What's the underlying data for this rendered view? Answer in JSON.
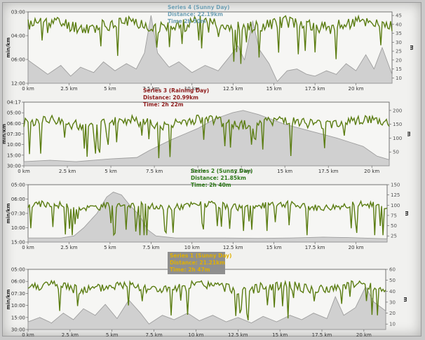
{
  "chart_data": [
    {
      "type": "line",
      "panel": "series-4",
      "annotation": [
        "Series 4 (Sunny Day)",
        "Distance: 22.19km",
        "Time 2h 50m"
      ],
      "annotation_color": "#6fa0b5",
      "annotation_bg": "",
      "ylabel": "min/km",
      "y2label": "m",
      "xticks": [
        "0 km",
        "2.5 km",
        "5 km",
        "7.5 km",
        "10 km",
        "12.5 km",
        "15 km",
        "17.5 km",
        "20 km"
      ],
      "xlim": [
        0,
        22.2
      ],
      "yticks": [
        "03:00",
        "04:00",
        "06:00",
        "12:00"
      ],
      "y2ticks": [
        10,
        15,
        20,
        25,
        30,
        35,
        40,
        45
      ],
      "y2lim": [
        7,
        47
      ],
      "pace_color": "#5b7d12",
      "elevation_color": "#9a9a9a",
      "pace_mean": 0.82,
      "pace_amp": 0.09,
      "pace_spikes": 0.22,
      "pace_seed": 4,
      "elevation": [
        [
          0,
          20
        ],
        [
          0.6,
          16
        ],
        [
          1.2,
          12
        ],
        [
          2,
          17
        ],
        [
          2.6,
          11
        ],
        [
          3.2,
          16
        ],
        [
          4,
          13
        ],
        [
          4.6,
          19
        ],
        [
          5.3,
          14
        ],
        [
          6,
          18
        ],
        [
          6.6,
          15
        ],
        [
          7.1,
          24
        ],
        [
          7.5,
          45
        ],
        [
          7.9,
          24
        ],
        [
          8.6,
          16
        ],
        [
          9.2,
          19
        ],
        [
          10,
          13
        ],
        [
          10.8,
          17
        ],
        [
          11.6,
          14
        ],
        [
          12.3,
          22
        ],
        [
          12.8,
          28
        ],
        [
          13.2,
          20
        ],
        [
          13.7,
          42
        ],
        [
          14.1,
          26
        ],
        [
          14.7,
          18
        ],
        [
          15.2,
          8
        ],
        [
          15.8,
          14
        ],
        [
          16.4,
          15
        ],
        [
          17,
          12
        ],
        [
          17.5,
          11
        ],
        [
          18.2,
          14
        ],
        [
          18.8,
          12
        ],
        [
          19.4,
          18
        ],
        [
          20,
          14
        ],
        [
          20.6,
          23
        ],
        [
          21.1,
          15
        ],
        [
          21.6,
          27
        ],
        [
          22.2,
          12
        ]
      ]
    },
    {
      "type": "line",
      "panel": "series-3",
      "annotation": [
        "Series 3 (Raining Day)",
        "Distance: 20.99km",
        "Time: 2h 22m"
      ],
      "annotation_color": "#8e1b1b",
      "annotation_bg": "",
      "ylabel": "min/km",
      "y2label": "m",
      "xticks": [
        "0 km",
        "2.5 km",
        "5 km",
        "7.5 km",
        "10 km",
        "12.5 km",
        "15 km",
        "17.5 km",
        "20 km"
      ],
      "xlim": [
        0,
        21
      ],
      "yticks": [
        "04:17",
        "05:00",
        "06:00",
        "07:30",
        "10:00",
        "15:00",
        "30:00"
      ],
      "y2ticks": [
        50,
        100,
        150,
        200
      ],
      "y2lim": [
        0,
        230
      ],
      "pace_color": "#5b7d12",
      "elevation_color": "#9a9a9a",
      "pace_mean": 0.68,
      "pace_amp": 0.08,
      "pace_spikes": 0.35,
      "pace_seed": 3,
      "elevation": [
        [
          0,
          15
        ],
        [
          1.5,
          20
        ],
        [
          3,
          15
        ],
        [
          5,
          25
        ],
        [
          6.5,
          30
        ],
        [
          7.2,
          55
        ],
        [
          8.5,
          95
        ],
        [
          10,
          135
        ],
        [
          11,
          170
        ],
        [
          12,
          192
        ],
        [
          12.6,
          200
        ],
        [
          13.5,
          185
        ],
        [
          15,
          150
        ],
        [
          16.5,
          125
        ],
        [
          18,
          100
        ],
        [
          19.5,
          70
        ],
        [
          20.3,
          35
        ],
        [
          21,
          22
        ]
      ]
    },
    {
      "type": "line",
      "panel": "series-2",
      "annotation": [
        "Series 2 (Sunny Day)",
        "Distance: 21.85km",
        "Time: 2h 40m"
      ],
      "annotation_color": "#2f7a1a",
      "annotation_bg": "",
      "ylabel": "min/km",
      "y2label": "m",
      "xticks": [
        "0 km",
        "2.5 km",
        "5 km",
        "7.5 km",
        "10 km",
        "12.5 km",
        "15 km",
        "17.5 km",
        "20 km"
      ],
      "xlim": [
        0,
        21.9
      ],
      "yticks": [
        "05:00",
        "06:00",
        "07:30",
        "10:00",
        "15:00"
      ],
      "y2ticks": [
        25,
        50,
        75,
        100,
        125,
        150
      ],
      "y2lim": [
        10,
        150
      ],
      "pace_color": "#5b7d12",
      "elevation_color": "#9a9a9a",
      "pace_mean": 0.63,
      "pace_amp": 0.06,
      "pace_spikes": 0.4,
      "pace_seed": 2,
      "elevation": [
        [
          0,
          20
        ],
        [
          2,
          20
        ],
        [
          2.8,
          25
        ],
        [
          3.4,
          45
        ],
        [
          4.2,
          80
        ],
        [
          4.8,
          120
        ],
        [
          5.2,
          132
        ],
        [
          5.7,
          125
        ],
        [
          6.2,
          100
        ],
        [
          6.8,
          75
        ],
        [
          7.3,
          40
        ],
        [
          7.8,
          25
        ],
        [
          9,
          20
        ],
        [
          12,
          20
        ],
        [
          14,
          19
        ],
        [
          16,
          20
        ],
        [
          18,
          22
        ],
        [
          19.5,
          21
        ],
        [
          21.9,
          18
        ]
      ]
    },
    {
      "type": "line",
      "panel": "series-1",
      "annotation": [
        "Series 1 (Sunny Day)",
        "Distance: 21.21km",
        "Time: 2h 47m"
      ],
      "annotation_color": "#e0b000",
      "annotation_bg": "#8f8f8f",
      "ylabel": "min/km",
      "y2label": "m",
      "xticks": [
        "0 km",
        "2.5 km",
        "5 km",
        "7.5 km",
        "10 km",
        "12.5 km",
        "15 km",
        "17.5 km",
        "20 km"
      ],
      "xlim": [
        0,
        21.3
      ],
      "yticks": [
        "05:00",
        "06:00",
        "07:30",
        "10:00",
        "15:00",
        "30:00"
      ],
      "y2ticks": [
        10,
        20,
        30,
        40,
        50,
        60
      ],
      "y2lim": [
        5,
        60
      ],
      "pace_color": "#5b7d12",
      "elevation_color": "#9a9a9a",
      "pace_mean": 0.7,
      "pace_amp": 0.08,
      "pace_spikes": 0.32,
      "pace_seed": 1,
      "elevation": [
        [
          0,
          12
        ],
        [
          0.7,
          16
        ],
        [
          1.4,
          11
        ],
        [
          2.1,
          20
        ],
        [
          2.7,
          14
        ],
        [
          3.3,
          24
        ],
        [
          4,
          18
        ],
        [
          4.6,
          28
        ],
        [
          5.3,
          15
        ],
        [
          6,
          32
        ],
        [
          6.7,
          20
        ],
        [
          7.2,
          10
        ],
        [
          8,
          18
        ],
        [
          8.7,
          14
        ],
        [
          9.5,
          20
        ],
        [
          10.2,
          13
        ],
        [
          11,
          18
        ],
        [
          11.8,
          12
        ],
        [
          12.5,
          16
        ],
        [
          13.3,
          11
        ],
        [
          14,
          17
        ],
        [
          14.8,
          12
        ],
        [
          15.6,
          18
        ],
        [
          16.3,
          14
        ],
        [
          17,
          20
        ],
        [
          17.8,
          15
        ],
        [
          18.3,
          35
        ],
        [
          18.8,
          18
        ],
        [
          19.5,
          25
        ],
        [
          20.1,
          44
        ],
        [
          20.6,
          30
        ],
        [
          21.3,
          22
        ]
      ]
    }
  ]
}
